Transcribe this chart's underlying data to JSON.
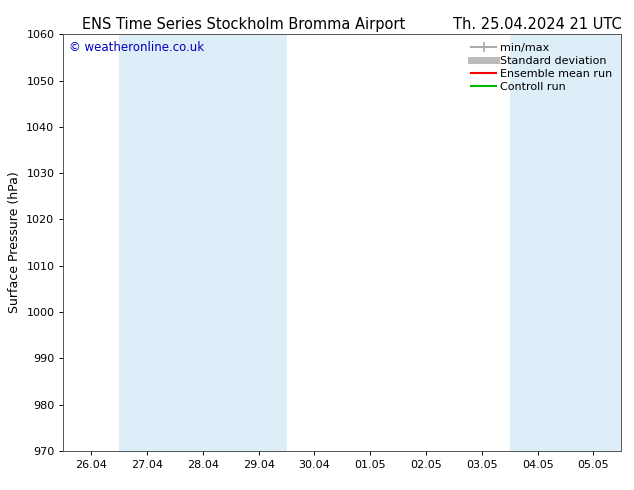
{
  "title_left": "ENS Time Series Stockholm Bromma Airport",
  "title_right": "Th. 25.04.2024 21 UTC",
  "ylabel": "Surface Pressure (hPa)",
  "ylim": [
    970,
    1060
  ],
  "yticks": [
    970,
    980,
    990,
    1000,
    1010,
    1020,
    1030,
    1040,
    1050,
    1060
  ],
  "x_labels": [
    "26.04",
    "27.04",
    "28.04",
    "29.04",
    "30.04",
    "01.05",
    "02.05",
    "03.05",
    "04.05",
    "05.05"
  ],
  "x_positions": [
    0,
    1,
    2,
    3,
    4,
    5,
    6,
    7,
    8,
    9
  ],
  "blue_band_positions": [
    1,
    2,
    3,
    8,
    9
  ],
  "blue_band_color": "#ddeef8",
  "background_color": "#ffffff",
  "plot_bg_color": "#ffffff",
  "copyright_text": "© weatheronline.co.uk",
  "copyright_color": "#0000bb",
  "legend_items": [
    {
      "label": "min/max",
      "color": "#aaaaaa",
      "lw": 1.5
    },
    {
      "label": "Standard deviation",
      "color": "#bbbbbb",
      "lw": 5
    },
    {
      "label": "Ensemble mean run",
      "color": "#ff0000",
      "lw": 1.5
    },
    {
      "label": "Controll run",
      "color": "#00bb00",
      "lw": 1.5
    }
  ],
  "title_fontsize": 10.5,
  "axis_label_fontsize": 9,
  "tick_fontsize": 8,
  "copyright_fontsize": 8.5,
  "figsize": [
    6.34,
    4.9
  ],
  "dpi": 100
}
